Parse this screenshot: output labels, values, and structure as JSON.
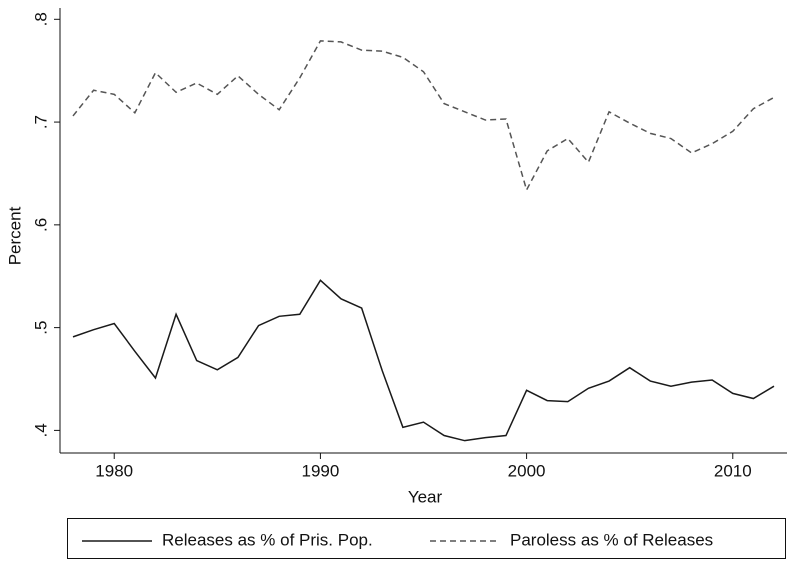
{
  "chart_data": {
    "type": "line",
    "x_label": "Year",
    "y_label": "Percent",
    "x": [
      1978,
      1979,
      1980,
      1981,
      1982,
      1983,
      1984,
      1985,
      1986,
      1987,
      1988,
      1989,
      1990,
      1991,
      1992,
      1993,
      1994,
      1995,
      1996,
      1997,
      1998,
      1999,
      2000,
      2001,
      2002,
      2003,
      2004,
      2005,
      2006,
      2007,
      2008,
      2009,
      2010,
      2011,
      2012
    ],
    "series": [
      {
        "name": "Releases as % of Pris. Pop.",
        "color": "#1a1a1a",
        "dash": "solid",
        "values": [
          0.491,
          0.498,
          0.504,
          0.477,
          0.451,
          0.513,
          0.468,
          0.459,
          0.471,
          0.502,
          0.511,
          0.513,
          0.546,
          0.528,
          0.519,
          0.458,
          0.403,
          0.408,
          0.395,
          0.39,
          0.393,
          0.395,
          0.439,
          0.429,
          0.428,
          0.441,
          0.448,
          0.461,
          0.448,
          0.443,
          0.447,
          0.449,
          0.436,
          0.431,
          0.443
        ]
      },
      {
        "name": "Paroless as % of Releases",
        "color": "#555555",
        "dash": "dashed",
        "values": [
          0.706,
          0.731,
          0.727,
          0.709,
          0.748,
          0.729,
          0.738,
          0.727,
          0.745,
          0.727,
          0.712,
          0.743,
          0.779,
          0.778,
          0.77,
          0.769,
          0.763,
          0.749,
          0.718,
          0.71,
          0.702,
          0.703,
          0.634,
          0.672,
          0.684,
          0.661,
          0.71,
          0.699,
          0.689,
          0.684,
          0.67,
          0.679,
          0.691,
          0.713,
          0.724
        ]
      }
    ],
    "xlim": [
      1977.37,
      2012.63
    ],
    "xticks": [
      1980,
      1990,
      2000,
      2010
    ],
    "ylim": [
      0.378,
      0.811
    ],
    "yticks": [
      {
        "value": 0.4,
        "label": ".4"
      },
      {
        "value": 0.5,
        "label": ".5"
      },
      {
        "value": 0.6,
        "label": ".6"
      },
      {
        "value": 0.7,
        "label": ".7"
      },
      {
        "value": 0.8,
        "label": ".8"
      }
    ],
    "grid": false,
    "legend_position": "bottom"
  }
}
